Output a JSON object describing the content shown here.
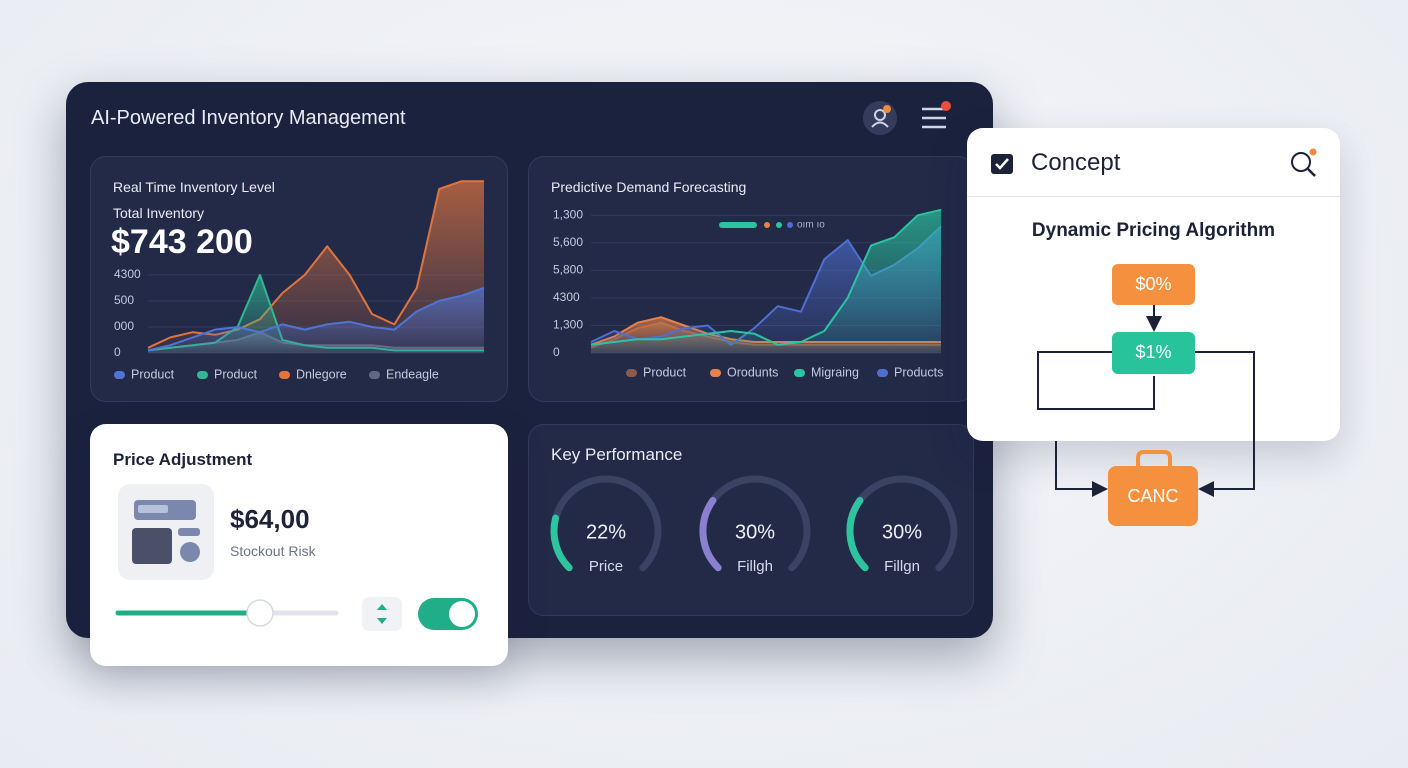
{
  "header": {
    "title": "AI-Powered Inventory Management"
  },
  "chart_data": [
    {
      "type": "area",
      "title": "Real Time Inventory Level",
      "subtitle": "Total Inventory",
      "total": "$743 200",
      "categories": [
        null,
        null,
        null,
        null,
        null,
        null,
        null,
        null,
        null,
        null,
        null,
        null,
        null,
        null,
        null,
        null
      ],
      "series": [
        {
          "name": "Product",
          "color": "#4f74d6",
          "values": [
            0.1,
            0.3,
            0.6,
            0.9,
            1.0,
            0.8,
            1.1,
            0.9,
            1.1,
            1.2,
            1.0,
            0.9,
            1.6,
            2.0,
            2.2,
            2.5
          ]
        },
        {
          "name": "Product",
          "color": "#2fb893",
          "values": [
            0.1,
            0.2,
            0.3,
            0.4,
            1.0,
            3.0,
            0.5,
            0.3,
            0.2,
            0.2,
            0.2,
            0.1,
            0.1,
            0.1,
            0.1,
            0.1
          ]
        },
        {
          "name": "Dnlegore",
          "color": "#e0743f",
          "values": [
            0.2,
            0.6,
            0.8,
            0.7,
            0.9,
            1.3,
            2.3,
            3.0,
            4.1,
            3.0,
            1.5,
            1.1,
            2.5,
            6.3,
            6.6,
            6.6
          ]
        },
        {
          "name": "Endeagle",
          "color": "#5f6782",
          "values": [
            0.1,
            0.2,
            0.3,
            0.4,
            0.5,
            0.8,
            0.4,
            0.3,
            0.3,
            0.3,
            0.3,
            0.2,
            0.2,
            0.2,
            0.2,
            0.2
          ]
        }
      ],
      "ylim": [
        0,
        6.8
      ],
      "yticks": [
        0,
        {
          "value": 1,
          "label": "000"
        },
        {
          "value": 2,
          "label": "500"
        },
        {
          "value": 3,
          "label": "4300"
        }
      ],
      "grid": true
    },
    {
      "type": "area",
      "title": "Predictive Demand Forecasting",
      "annotation": "oım ıo",
      "categories": [
        null,
        null,
        null,
        null,
        null,
        null,
        null,
        null,
        null,
        null,
        null,
        null,
        null,
        null,
        null,
        null
      ],
      "series": [
        {
          "name": "Product",
          "color": "#8a5a4a",
          "values": [
            0.2,
            0.5,
            0.9,
            1.1,
            0.8,
            0.6,
            0.4,
            0.3,
            0.3,
            0.3,
            0.3,
            0.3,
            0.3,
            0.3,
            0.3,
            0.3
          ]
        },
        {
          "name": "Orodunts",
          "color": "#e8824a",
          "values": [
            0.3,
            0.6,
            1.1,
            1.3,
            1.0,
            0.7,
            0.5,
            0.4,
            0.4,
            0.4,
            0.4,
            0.4,
            0.4,
            0.4,
            0.4,
            0.4
          ]
        },
        {
          "name": "Migraing",
          "color": "#2bc4a0",
          "values": [
            0.3,
            0.4,
            0.5,
            0.5,
            0.6,
            0.7,
            0.8,
            0.7,
            0.3,
            0.4,
            0.8,
            2.0,
            3.9,
            4.2,
            5.0,
            5.2
          ]
        },
        {
          "name": "Products",
          "color": "#4f6fd0",
          "values": [
            0.4,
            0.8,
            0.5,
            0.6,
            0.9,
            1.0,
            0.3,
            0.9,
            1.7,
            1.5,
            3.4,
            4.1,
            2.8,
            3.2,
            3.8,
            4.6
          ]
        }
      ],
      "ylim": [
        0,
        5.3
      ],
      "yticks": [
        0,
        {
          "value": 1,
          "label": "1,300"
        },
        {
          "value": 2,
          "label": "4300"
        },
        {
          "value": 3,
          "label": "5,800"
        },
        {
          "value": 4,
          "label": "5,600"
        },
        {
          "value": 5,
          "label": "1,300"
        }
      ],
      "grid": true
    }
  ],
  "price_adjustment": {
    "title": "Price Adjustment",
    "price": "$64,00",
    "caption": "Stockout Risk"
  },
  "key_performance": {
    "title": "Key Performance",
    "gauges": [
      {
        "value": 22,
        "label": "22%",
        "caption": "Price",
        "color": "#2fc4a0"
      },
      {
        "value": 30,
        "label": "30%",
        "caption": "Fillgh",
        "color": "#8b7fd0"
      },
      {
        "value": 30,
        "label": "30%",
        "caption": "Fillgn",
        "color": "#2fc4a0"
      }
    ]
  },
  "concept": {
    "title": "Concept",
    "heading": "Dynamic Pricing Algorithm",
    "nodes": [
      {
        "label": "$0%"
      },
      {
        "label": "$1%"
      },
      {
        "label": "CANC"
      }
    ]
  }
}
